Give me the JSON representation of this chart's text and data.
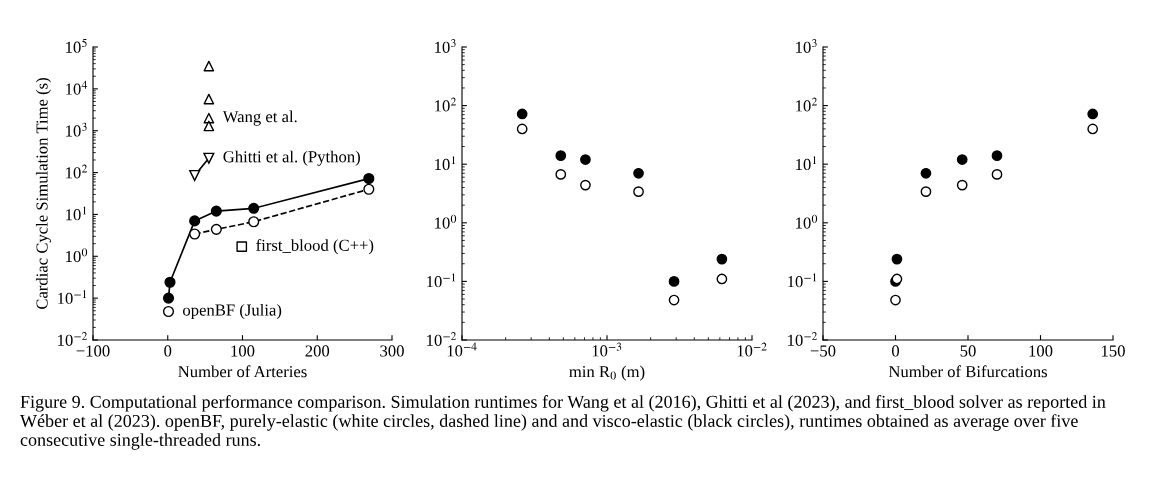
{
  "chart_data": [
    {
      "type": "scatter",
      "xlabel": "Number of Arteries",
      "ylabel": "Cardiac Cycle Simulation Time (s)",
      "log": "y",
      "grid": false,
      "xlim": [
        -100,
        300
      ],
      "xticks": [
        {
          "value": -100,
          "label": "−100"
        },
        0,
        100,
        200,
        300
      ],
      "ylim": [
        0.01,
        100000
      ],
      "yticks": [
        {
          "value": 0.01,
          "label": "10$^{−2}$"
        },
        {
          "value": 0.1,
          "label": "10$^{−1}$"
        },
        {
          "value": 1,
          "label": "10$^{0}$"
        },
        {
          "value": 10,
          "label": "10$^{1}$"
        },
        {
          "value": 100,
          "label": "10$^{2}$"
        },
        {
          "value": 1000,
          "label": "10$^{3}$"
        },
        {
          "value": 10000,
          "label": "10$^{4}$"
        },
        {
          "value": 100000,
          "label": "10$^{5}$"
        }
      ],
      "series": [
        {
          "type": "line",
          "marker": "circle",
          "line_style": "dashed",
          "color": "#ffffff",
          "x": [
            1,
            3,
            36,
            65,
            115,
            269
          ],
          "values": [
            0.048,
            null,
            3.4,
            4.4,
            6.7,
            40
          ]
        },
        {
          "type": "line",
          "marker": "circle",
          "line_style": "solid",
          "color": "#000000",
          "x": [
            1,
            3,
            36,
            65,
            115,
            269
          ],
          "values": [
            0.1,
            0.24,
            7,
            12,
            14,
            72
          ]
        },
        {
          "type": "scatter",
          "marker": "triangle",
          "color": "#ffffff",
          "x": [
            55,
            55,
            55,
            55
          ],
          "values": [
            35000,
            5700,
            2000,
            1300
          ]
        },
        {
          "type": "line",
          "marker": "triangle_down",
          "line_style": "solid",
          "color": "#ffffff",
          "x": [
            36,
            55
          ],
          "values": [
            85,
            220
          ]
        },
        {
          "type": "scatter",
          "marker": "square",
          "color": "#ffffff",
          "x": [
            99
          ],
          "values": [
            1.7
          ]
        }
      ],
      "annotations": [
        {
          "text": "Wang et al.",
          "x": 55,
          "y": 2000
        },
        {
          "text": "Ghitti et al. (Python)",
          "x": 55,
          "y": 220
        },
        {
          "text": "first_blood (C++)",
          "x": 99,
          "y": 1.7
        },
        {
          "text": "openBF (Julia)",
          "x": 1,
          "y": 0.048
        },
        "Figure 9. Computational performance comparison. Simulation runtimes for Wang et al (2016), Ghitti et al (2023), and first_blood solver as reported in Wéber et al (2023). openBF, purely-elastic (white circles, dashed line) and and visco-elastic (black circles), runtimes obtained as average over five consecutive single-threaded runs."
      ]
    },
    {
      "type": "scatter",
      "xlabel": "min R$_{0}$ (m)",
      "log": "xy",
      "grid": false,
      "xlim": [
        0.0001,
        0.01
      ],
      "xticks": [
        {
          "value": 0.0001,
          "label": "10$^{−4}$"
        },
        {
          "value": 0.001,
          "label": "10$^{−3}$"
        },
        {
          "value": 0.01,
          "label": "10$^{−2}$"
        }
      ],
      "ylim": [
        0.01,
        1000
      ],
      "yticks": [
        {
          "value": 0.01,
          "label": "10$^{−2}$"
        },
        {
          "value": 0.1,
          "label": "10$^{−1}$"
        },
        {
          "value": 1,
          "label": "10$^{0}$"
        },
        {
          "value": 10,
          "label": "10$^{1}$"
        },
        {
          "value": 100,
          "label": "10$^{2}$"
        },
        {
          "value": 1000,
          "label": "10$^{3}$"
        }
      ],
      "series": [
        {
          "marker": "circle",
          "color": "#ffffff",
          "x": [
            0.0029,
            0.0062,
            0.00165,
            0.00071,
            0.00048,
            0.00026
          ],
          "values": [
            0.048,
            0.11,
            3.4,
            4.4,
            6.7,
            40
          ]
        },
        {
          "marker": "circle",
          "color": "#000000",
          "x": [
            0.0029,
            0.0062,
            0.00165,
            0.00071,
            0.00048,
            0.00026
          ],
          "values": [
            0.1,
            0.24,
            7,
            12,
            14,
            72
          ]
        }
      ]
    },
    {
      "type": "scatter",
      "xlabel": "Number of Bifurcations",
      "log": "y",
      "grid": false,
      "xlim": [
        -50,
        150
      ],
      "xticks": [
        {
          "value": -50,
          "label": "−50"
        },
        0,
        50,
        100,
        150
      ],
      "ylim": [
        0.01,
        1000
      ],
      "yticks": [
        {
          "value": 0.01,
          "label": "10$^{−2}$"
        },
        {
          "value": 0.1,
          "label": "10$^{−1}$"
        },
        {
          "value": 1,
          "label": "10$^{0}$"
        },
        {
          "value": 10,
          "label": "10$^{1}$"
        },
        {
          "value": 100,
          "label": "10$^{2}$"
        },
        {
          "value": 1000,
          "label": "10$^{3}$"
        }
      ],
      "series": [
        {
          "marker": "circle",
          "color": "#ffffff",
          "x": [
            0,
            1,
            21,
            46,
            70,
            136
          ],
          "values": [
            0.048,
            0.11,
            3.4,
            4.4,
            6.7,
            40
          ]
        },
        {
          "marker": "circle",
          "color": "#000000",
          "x": [
            0,
            1,
            21,
            46,
            70,
            136
          ],
          "values": [
            0.1,
            0.24,
            7,
            12,
            14,
            72
          ]
        }
      ]
    }
  ]
}
